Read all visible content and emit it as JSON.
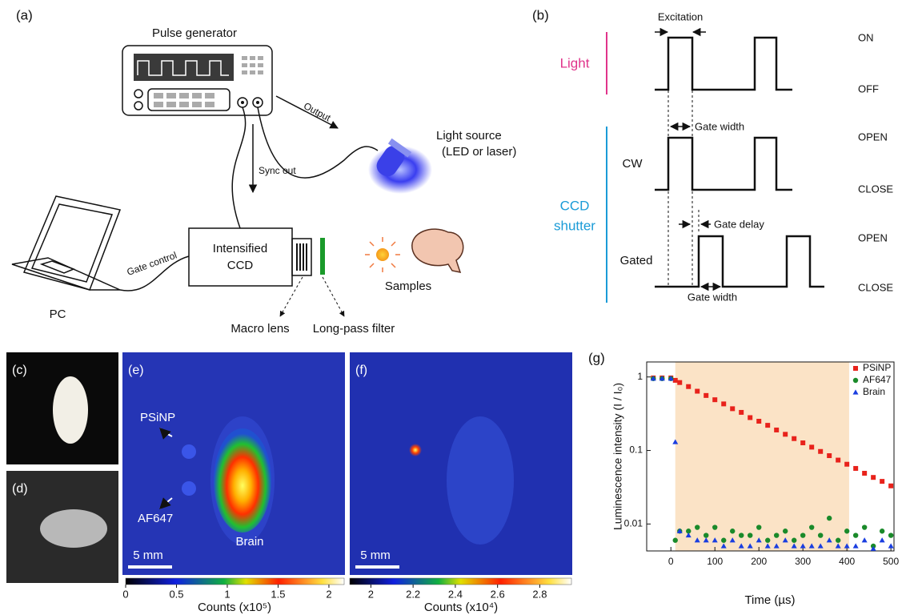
{
  "panel_a": {
    "label": "(a)",
    "pulse_generator": "Pulse generator",
    "output": "Output",
    "sync_out": "Sync out",
    "light_source": [
      "Light source",
      "(LED or laser)"
    ],
    "gate_control": "Gate control",
    "ccd": [
      "Intensified",
      "CCD"
    ],
    "pc": "PC",
    "samples": "Samples",
    "macro_lens": "Macro lens",
    "filter": "Long-pass filter"
  },
  "panel_b": {
    "label": "(b)",
    "excitation": "Excitation",
    "light": "Light",
    "on": "ON",
    "off": "OFF",
    "gate_width_cw": "Gate width",
    "cw": "CW",
    "open_cw": "OPEN",
    "close_cw": "CLOSE",
    "ccd_shutter": [
      "CCD",
      "shutter"
    ],
    "gate_delay": "Gate delay",
    "gated": "Gated",
    "open_gated": "OPEN",
    "close_gated": "CLOSE",
    "gate_width_gated": "Gate width"
  },
  "images": {
    "c": "(c)",
    "d": "(d)",
    "e": {
      "label": "(e)",
      "psinp": "PSiNP",
      "af647": "AF647",
      "brain": "Brain",
      "scale": "5 mm",
      "colorbar": {
        "range": [
          0,
          2.15
        ],
        "ticks": [
          0,
          0.5,
          1,
          1.5,
          2
        ],
        "label": "Counts (x10⁵)"
      }
    },
    "f": {
      "label": "(f)",
      "scale": "5 mm",
      "colorbar": {
        "range": [
          1.9,
          2.95
        ],
        "ticks": [
          2,
          2.2,
          2.4,
          2.6,
          2.8
        ],
        "label": "Counts (x10⁴)"
      }
    }
  },
  "chart_data": {
    "type": "scatter",
    "label": "(g)",
    "xlabel": "Time (µs)",
    "ylabel": "Luminescence intensity (I / I₀)",
    "log_y": true,
    "shaded_x": [
      10,
      405
    ],
    "shade_color": "#fbe3c6",
    "x": [
      -40,
      -20,
      0,
      10,
      20,
      40,
      60,
      80,
      100,
      120,
      140,
      160,
      180,
      200,
      220,
      240,
      260,
      280,
      300,
      320,
      340,
      360,
      380,
      400,
      420,
      440,
      460,
      480,
      500
    ],
    "xlim": [
      -55,
      507
    ],
    "xticks": [
      0,
      100,
      200,
      300,
      400,
      500
    ],
    "ylim": [
      0.0043,
      1.6
    ],
    "yticks": [
      0.01,
      0.1,
      1
    ],
    "legend": "upper right",
    "series": [
      {
        "name": "PSiNP",
        "color": "#e8221b",
        "marker": "square",
        "values": [
          0.97,
          0.97,
          0.97,
          0.9,
          0.84,
          0.74,
          0.64,
          0.56,
          0.49,
          0.43,
          0.37,
          0.33,
          0.28,
          0.25,
          0.22,
          0.19,
          0.166,
          0.145,
          0.127,
          0.111,
          0.097,
          0.085,
          0.074,
          0.065,
          0.057,
          0.049,
          0.043,
          0.038,
          0.033
        ]
      },
      {
        "name": "AF647",
        "color": "#1a8a2a",
        "marker": "circle",
        "values": [
          0.95,
          0.95,
          0.95,
          0.006,
          0.008,
          0.008,
          0.009,
          0.007,
          0.009,
          0.006,
          0.008,
          0.007,
          0.007,
          0.009,
          0.006,
          0.007,
          0.008,
          0.006,
          0.007,
          0.009,
          0.007,
          0.012,
          0.006,
          0.008,
          0.007,
          0.009,
          0.005,
          0.008,
          0.007
        ]
      },
      {
        "name": "Brain",
        "color": "#1a3ee0",
        "marker": "triangle",
        "values": [
          0.95,
          0.95,
          0.95,
          0.13,
          0.008,
          0.007,
          0.006,
          0.006,
          0.006,
          0.005,
          0.006,
          0.005,
          0.005,
          0.006,
          0.005,
          0.005,
          0.006,
          0.005,
          0.005,
          0.005,
          0.005,
          0.006,
          0.005,
          0.005,
          0.005,
          0.006,
          0.0046,
          0.006,
          0.005
        ]
      }
    ]
  }
}
